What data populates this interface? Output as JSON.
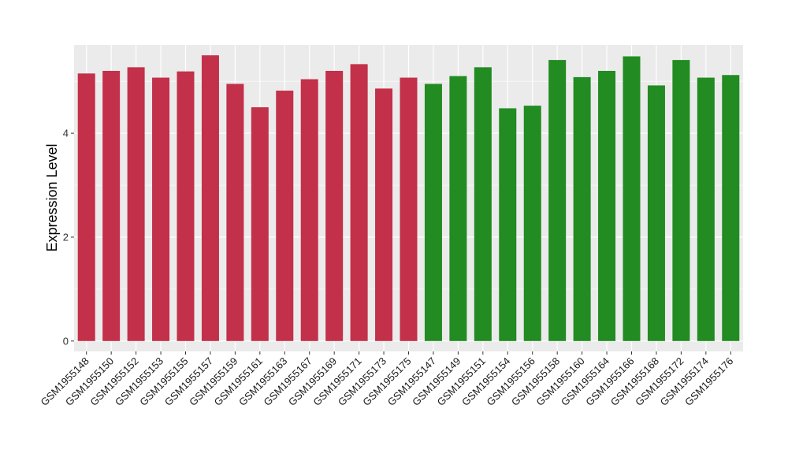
{
  "chart_data": {
    "type": "bar",
    "title": "",
    "xlabel": "",
    "ylabel": "Expression Level",
    "ylim": [
      -0.2,
      5.7
    ],
    "yticks": [
      0,
      2,
      4
    ],
    "grid": true,
    "legend": "none",
    "categories": [
      "GSM1955148",
      "GSM1955150",
      "GSM1955152",
      "GSM1955153",
      "GSM1955155",
      "GSM1955157",
      "GSM1955159",
      "GSM1955161",
      "GSM1955163",
      "GSM1955167",
      "GSM1955169",
      "GSM1955171",
      "GSM1955173",
      "GSM1955175",
      "GSM1955147",
      "GSM1955149",
      "GSM1955151",
      "GSM1955154",
      "GSM1955156",
      "GSM1955158",
      "GSM1955160",
      "GSM1955164",
      "GSM1955166",
      "GSM1955168",
      "GSM1955172",
      "GSM1955174",
      "GSM1955176"
    ],
    "values": [
      5.15,
      5.2,
      5.27,
      5.07,
      5.19,
      5.5,
      4.95,
      4.5,
      4.82,
      5.04,
      5.2,
      5.33,
      4.86,
      5.07,
      4.95,
      5.1,
      5.27,
      4.48,
      4.53,
      5.41,
      5.08,
      5.2,
      5.48,
      4.92,
      5.41,
      5.07,
      5.12
    ],
    "group_colors": [
      "#C3304A",
      "#228B22"
    ],
    "group_sizes": [
      14,
      13
    ],
    "panel_color": "#EBEBEB",
    "grid_color": "#FFFFFF"
  }
}
